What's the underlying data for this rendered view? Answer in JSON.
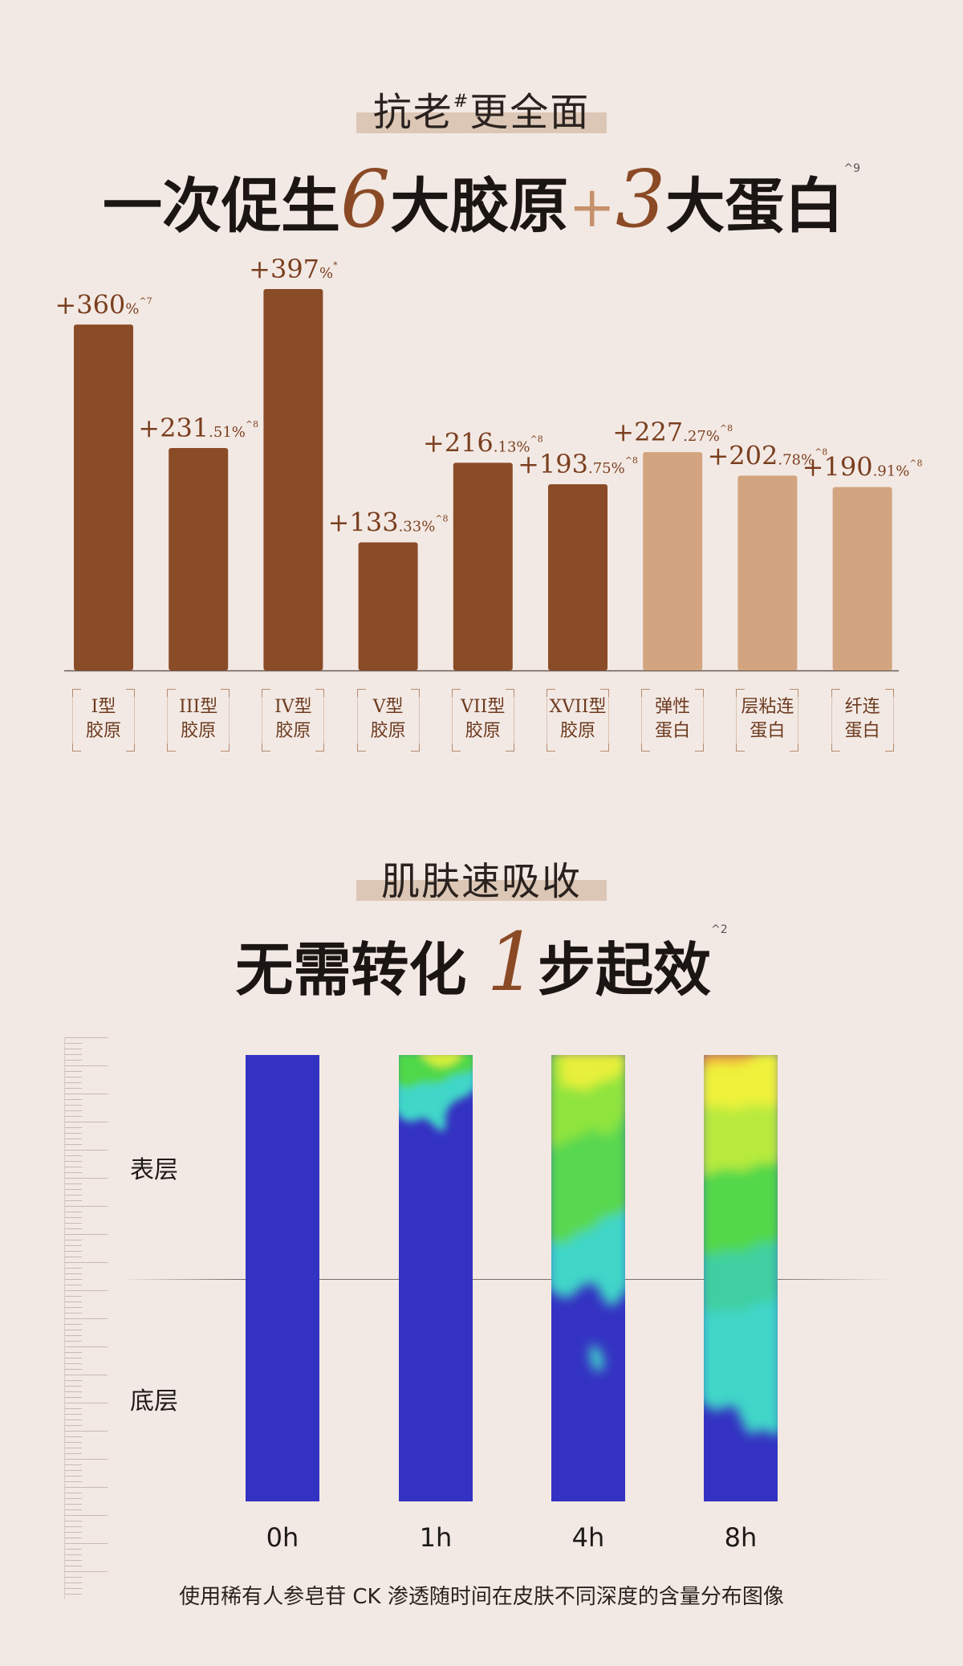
{
  "section1": {
    "heading": "抗老",
    "heading_sup": "#",
    "heading_rest": "更全面",
    "title_parts": [
      "一次促生",
      "6",
      "大胶原",
      "+",
      "3",
      "大蛋白"
    ],
    "title_note": "^9"
  },
  "chart_data": {
    "type": "bar",
    "ylim": [
      0,
      420
    ],
    "categories": [
      "I型胶原",
      "III型胶原",
      "IV型胶原",
      "V型胶原",
      "VII型胶原",
      "XVII型胶原",
      "弹性蛋白",
      "层粘连蛋白",
      "纤连蛋白"
    ],
    "category_lines": [
      [
        "I型",
        "胶原"
      ],
      [
        "III型",
        "胶原"
      ],
      [
        "IV型",
        "胶原"
      ],
      [
        "V型",
        "胶原"
      ],
      [
        "VII型",
        "胶原"
      ],
      [
        "XVII型",
        "胶原"
      ],
      [
        "弹性",
        "蛋白"
      ],
      [
        "层粘连",
        "蛋白"
      ],
      [
        "纤连",
        "蛋白"
      ]
    ],
    "values": [
      360,
      231.51,
      397,
      133.33,
      216.13,
      193.75,
      227.27,
      202.78,
      190.91
    ],
    "labels_main": [
      "+360",
      "+231",
      "+397",
      "+133",
      "+216",
      "+193",
      "+227",
      "+202",
      "+190"
    ],
    "labels_small": [
      "%",
      ".51%",
      "%",
      ".33%",
      ".13%",
      ".75%",
      ".27%",
      ".78%",
      ".91%"
    ],
    "labels_note": [
      "^7",
      "^8",
      "*",
      "^8",
      "^8",
      "^8",
      "^8",
      "^8",
      "^8"
    ],
    "groups": [
      "collagen",
      "collagen",
      "collagen",
      "collagen",
      "collagen",
      "collagen",
      "protein",
      "protein",
      "protein"
    ],
    "colors": {
      "collagen": "#8a4b27",
      "protein": "#d2a47f",
      "label": "#7a3f1f"
    }
  },
  "section2": {
    "heading": "肌肤速吸收",
    "title_pre": "无需转化 ",
    "title_accent": "1",
    "title_post": "步起效",
    "title_note": "^2"
  },
  "absorption": {
    "layer_top": "表层",
    "layer_bottom": "底层",
    "times": [
      "0h",
      "1h",
      "4h",
      "8h"
    ],
    "caption": "使用稀有人参皂苷 CK 渗透随时间在皮肤不同深度的含量分布图像",
    "colors": {
      "base": "#3432c2",
      "cyan": "#3fd6c8",
      "green": "#4fd84a",
      "yellow": "#eef23a",
      "orange": "#f2a43a"
    }
  }
}
